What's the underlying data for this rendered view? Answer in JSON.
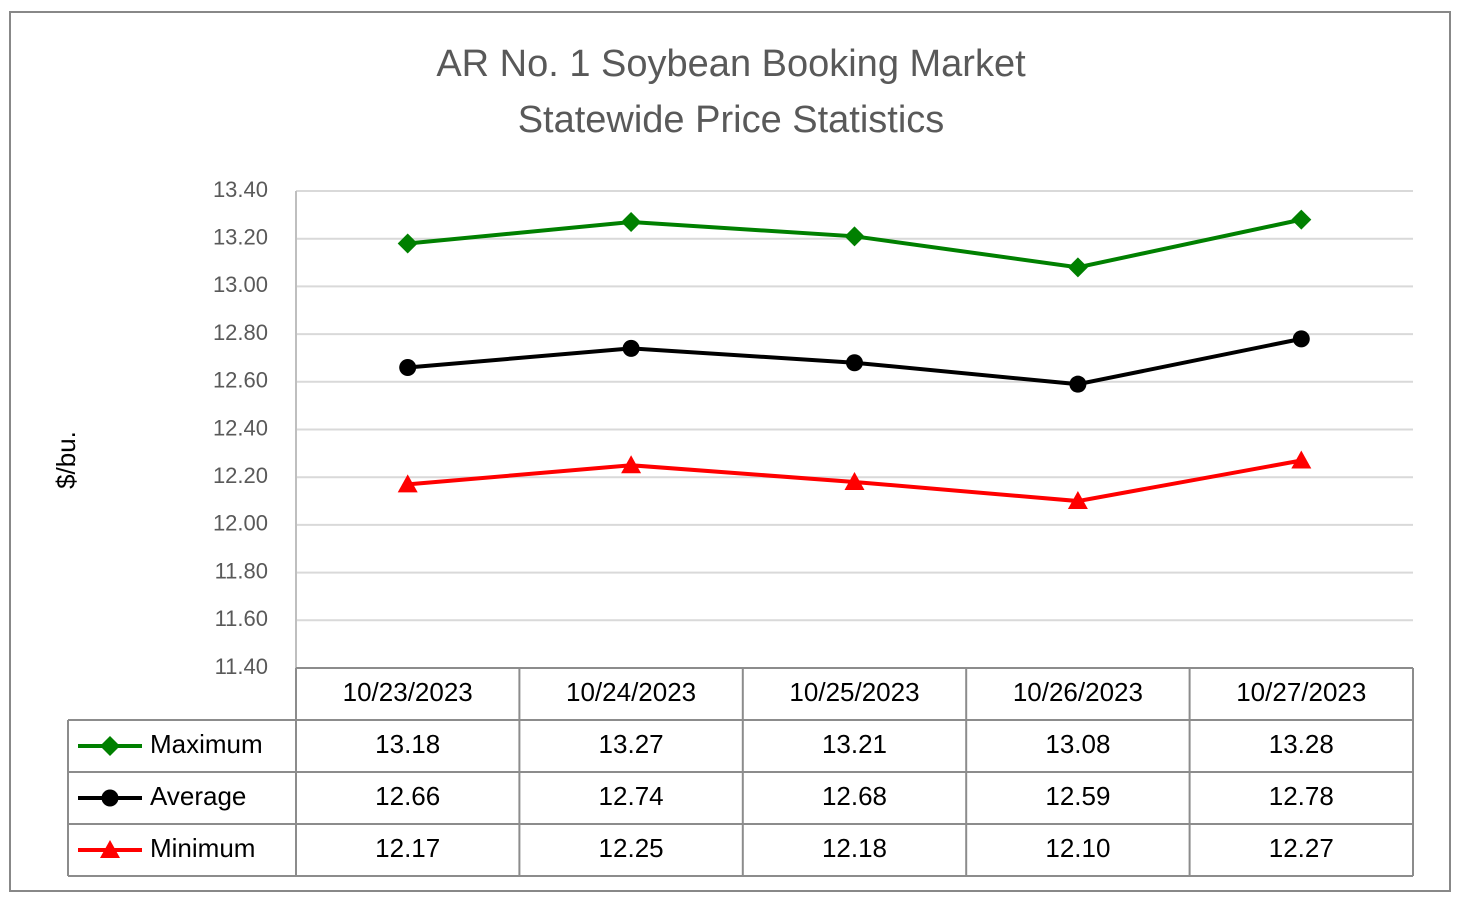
{
  "chart_data": {
    "type": "line",
    "title": "AR No. 1 Soybean Booking Market",
    "subtitle": "Statewide Price Statistics",
    "y_label": "$/bu.",
    "categories": [
      "10/23/2023",
      "10/24/2023",
      "10/25/2023",
      "10/26/2023",
      "10/27/2023"
    ],
    "series": [
      {
        "name": "Maximum",
        "color": "#008000",
        "marker": "diamond",
        "values": [
          13.18,
          13.27,
          13.21,
          13.08,
          13.28
        ]
      },
      {
        "name": "Average",
        "color": "#000000",
        "marker": "circle",
        "values": [
          12.66,
          12.74,
          12.68,
          12.59,
          12.78
        ]
      },
      {
        "name": "Minimum",
        "color": "#ff0000",
        "marker": "triangle",
        "values": [
          12.17,
          12.25,
          12.18,
          12.1,
          12.27
        ],
        "value_labels": [
          "12.17",
          "12.25",
          "12.18",
          "12.10",
          "12.27"
        ]
      }
    ],
    "ylim": [
      11.4,
      13.4
    ],
    "yticks": [
      {
        "value": 11.4,
        "label": "11.40"
      },
      {
        "value": 11.6,
        "label": "11.60"
      },
      {
        "value": 11.8,
        "label": "11.80"
      },
      {
        "value": 12,
        "label": "12.00"
      },
      {
        "value": 12.2,
        "label": "12.20"
      },
      {
        "value": 12.4,
        "label": "12.40"
      },
      {
        "value": 12.6,
        "label": "12.60"
      },
      {
        "value": 12.8,
        "label": "12.80"
      },
      {
        "value": 13,
        "label": "13.00"
      },
      {
        "value": 13.2,
        "label": "13.20"
      },
      {
        "value": 13.4,
        "label": "13.40"
      }
    ],
    "grid": true,
    "data_table": true
  }
}
